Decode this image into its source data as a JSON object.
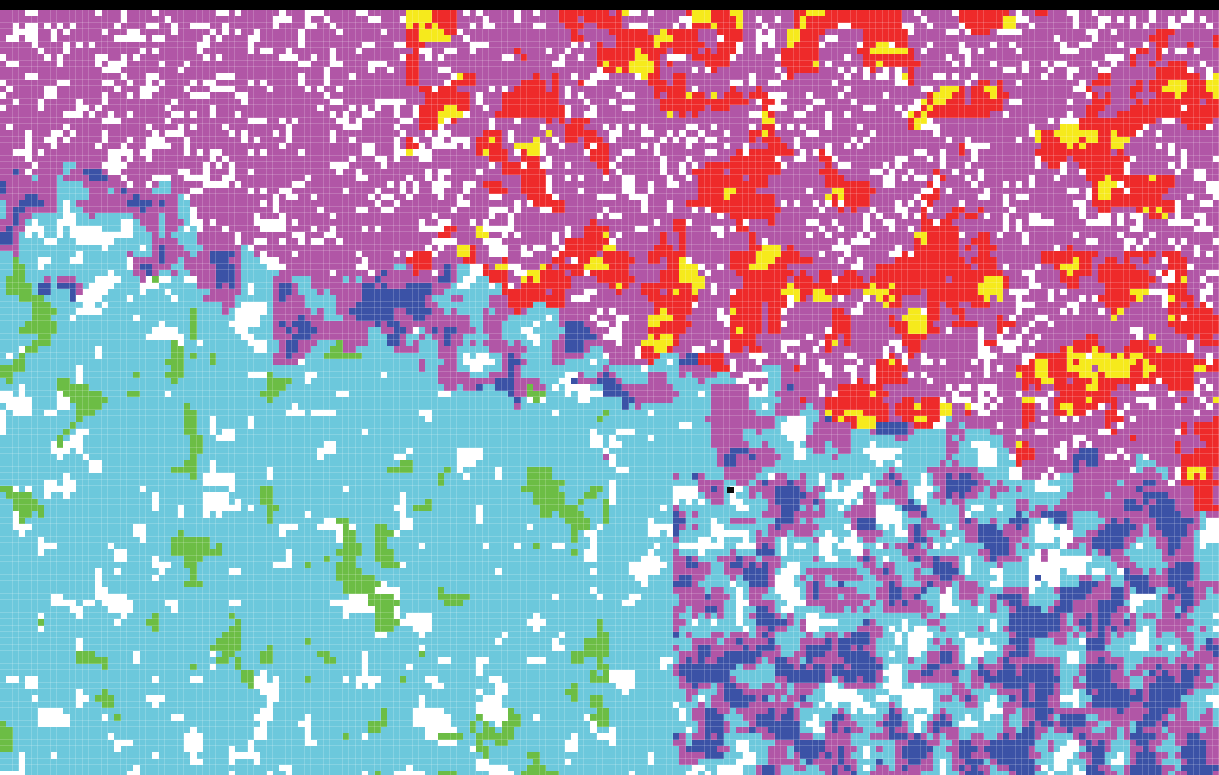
{
  "view": {
    "kind": "classified-pixel-segmentation-map",
    "legend_present": false,
    "visible_text": []
  },
  "palette": {
    "background": "#ffffff",
    "magenta": "#b156a6",
    "red": "#ee2a2a",
    "yellow": "#f6ea1c",
    "light_blue": "#6cc8dc",
    "dark_blue": "#3b52a6",
    "green": "#6cbd45",
    "black": "#0d0d0d"
  }
}
